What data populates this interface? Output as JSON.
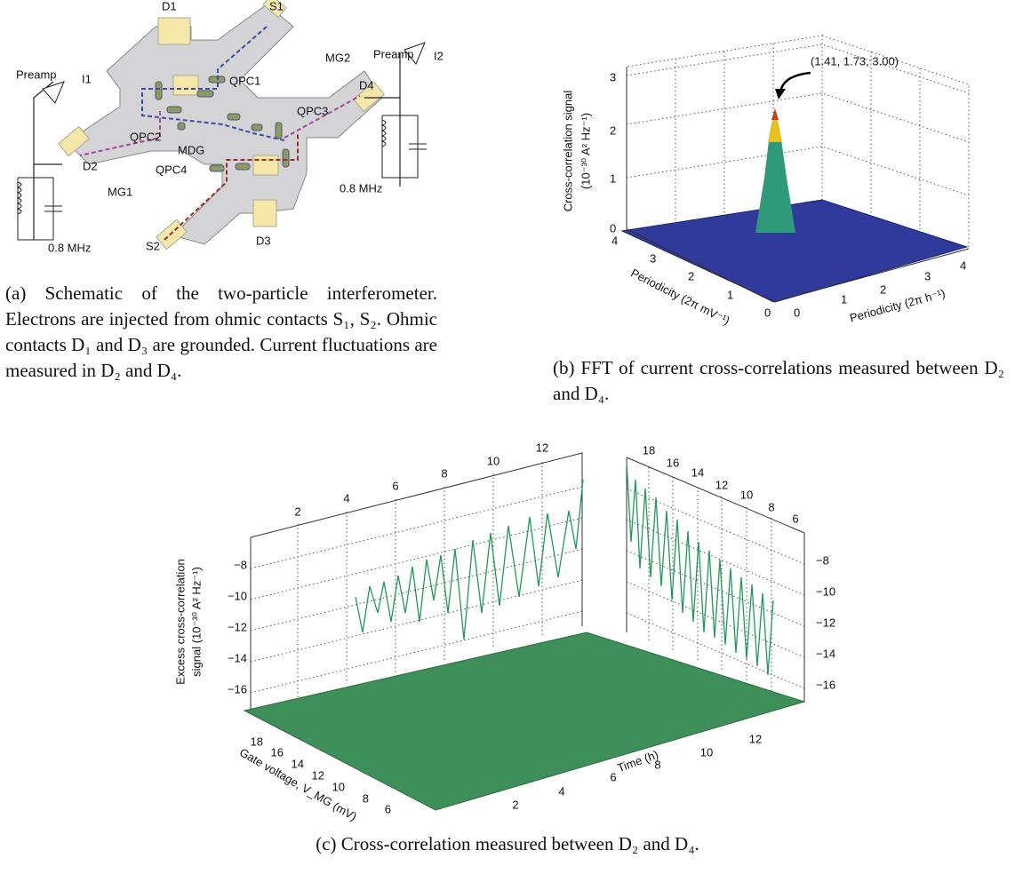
{
  "panel_a": {
    "labels": [
      "D1",
      "S1",
      "Preamp",
      "I1",
      "MG2",
      "QPC1",
      "Preamp",
      "I2",
      "D4",
      "QPC3",
      "QPC2",
      "MDG",
      "D2",
      "QPC4",
      "MG1",
      "0.8 MHz",
      "S2",
      "D3",
      "0.8 MHz"
    ],
    "caption": "(a) Schematic of the two-particle interferometer. Electrons are injected from ohmic contacts S₁, S₂. Ohmic contacts D₁ and D₃ are grounded. Current fluctuations are measured in D₂ and D₄."
  },
  "panel_b": {
    "z_label": [
      "Cross-correlation signal",
      "(10⁻³⁰ A² Hz⁻¹)"
    ],
    "z_ticks": [
      "0",
      "1",
      "2",
      "3"
    ],
    "y_label": "Periodicity (2π mV⁻¹)",
    "y_ticks": [
      "4",
      "3",
      "2",
      "1",
      "0"
    ],
    "x_label": "Periodicity (2π h⁻¹)",
    "x_ticks": [
      "0",
      "1",
      "2",
      "3",
      "4"
    ],
    "annotation": "(1.41, 1.73, 3.00)",
    "caption": "(b) FFT of current cross-correlations measured between D₂ and D₄."
  },
  "panel_c": {
    "z_label": [
      "Excess cross-correlation",
      "signal (10⁻³⁰ A² Hz⁻¹)"
    ],
    "left_z_ticks": [
      "−8",
      "−10",
      "−12",
      "−14",
      "−16"
    ],
    "right_z_ticks": [
      "−8",
      "−10",
      "−12",
      "−14",
      "−16"
    ],
    "top_time_ticks": [
      "2",
      "4",
      "6",
      "8",
      "10",
      "12"
    ],
    "top_gate_ticks": [
      "18",
      "16",
      "14",
      "12",
      "10",
      "8",
      "6"
    ],
    "time_ticks": [
      "2",
      "4",
      "6",
      "8",
      "10",
      "12"
    ],
    "time_label": "Time (h)",
    "gate_ticks": [
      "18",
      "16",
      "14",
      "12",
      "10",
      "8",
      "6"
    ],
    "gate_label": "Gate voltage, V_MG (mV)",
    "caption": "(c) Cross-correlation measured between D₂ and D₄."
  }
}
